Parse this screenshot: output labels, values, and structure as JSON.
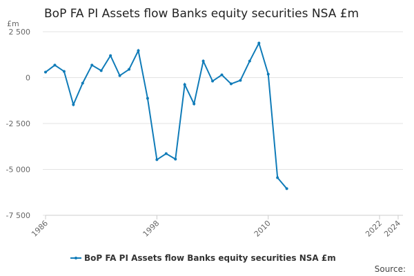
{
  "chart_data": {
    "type": "line",
    "title": "BoP FA PI Assets flow Banks equity securities NSA £m",
    "y_unit": "£m",
    "source": "Source:",
    "x": [
      1986,
      1987,
      1988,
      1989,
      1990,
      1991,
      1992,
      1993,
      1994,
      1995,
      1996,
      1997,
      1998,
      1999,
      2000,
      2001,
      2002,
      2003,
      2004,
      2005,
      2006,
      2007,
      2008,
      2009,
      2010,
      2011,
      2012
    ],
    "series": [
      {
        "name": "BoP FA PI Assets flow Banks equity securities NSA £m",
        "color": "#0f7bb8",
        "values": [
          300,
          680,
          340,
          -1470,
          -300,
          680,
          380,
          1200,
          110,
          450,
          1470,
          -1130,
          -4470,
          -4140,
          -4440,
          -380,
          -1430,
          900,
          -190,
          150,
          -340,
          -150,
          900,
          1880,
          190,
          -5450,
          -6050
        ]
      }
    ],
    "xlim": [
      1986,
      2024
    ],
    "xticks": [
      1986,
      1998,
      2010,
      2022,
      2024
    ],
    "ylim": [
      -7500,
      2500
    ],
    "yticks": [
      {
        "value": -7500,
        "label": "-7 500"
      },
      {
        "value": -5000,
        "label": "-5 000"
      },
      {
        "value": -2500,
        "label": "-2 500"
      },
      0,
      {
        "value": 2500,
        "label": "2 500"
      }
    ],
    "grid": true,
    "legend": "bottom"
  }
}
